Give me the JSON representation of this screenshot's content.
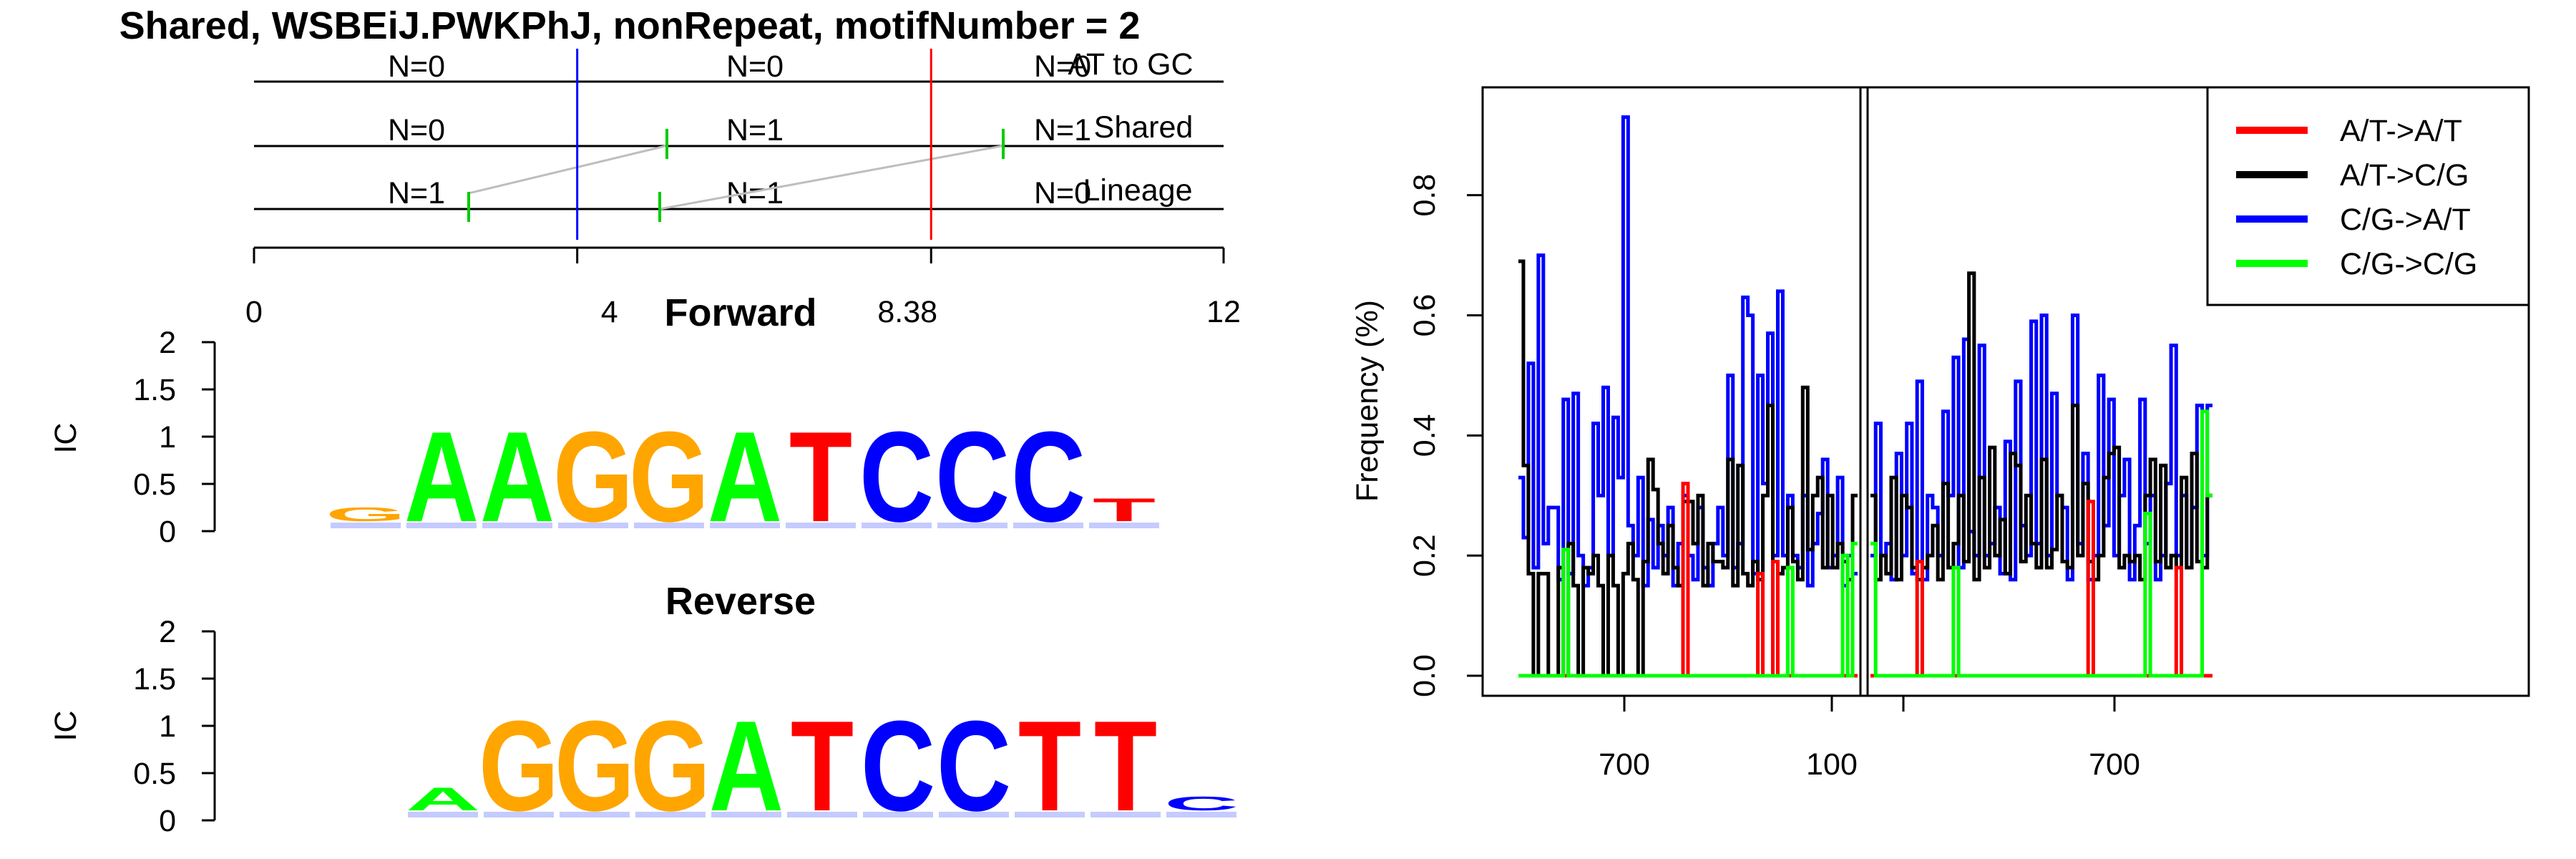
{
  "title": "Shared, WSBEiJ.PWKPhJ, nonRepeat, motifNumber = 2",
  "track": {
    "rows": [
      {
        "label": "AT to GC",
        "counts": [
          "N=0",
          "N=0",
          "N=0"
        ]
      },
      {
        "label": "Shared",
        "counts": [
          "N=0",
          "N=1",
          "N=1"
        ]
      },
      {
        "label": "Lineage",
        "counts": [
          "N=1",
          "N=1",
          "N=0"
        ]
      }
    ],
    "ticks": [
      "0",
      "4",
      "8.38",
      "12"
    ],
    "blue_marker_at": 4,
    "red_marker_at": 8.38,
    "axis_max": 12
  },
  "logos": [
    {
      "title": "Forward",
      "ylabel": "IC",
      "yticks": [
        "2",
        "1.5",
        "1",
        "0.5",
        "0"
      ],
      "letters": [
        "G",
        "A",
        "A",
        "G",
        "G",
        "A",
        "T",
        "C",
        "C",
        "C",
        "T"
      ],
      "heights": [
        0.15,
        0.98,
        0.98,
        0.98,
        0.98,
        0.98,
        0.98,
        0.98,
        0.98,
        0.98,
        0.25
      ]
    },
    {
      "title": "Reverse",
      "ylabel": "IC",
      "yticks": [
        "2",
        "1.5",
        "1",
        "0.5",
        "0"
      ],
      "letters": [
        "A",
        "G",
        "G",
        "G",
        "A",
        "T",
        "C",
        "C",
        "T",
        "T",
        "C"
      ],
      "heights": [
        0.25,
        0.98,
        0.98,
        0.98,
        0.98,
        0.98,
        0.98,
        0.98,
        0.98,
        0.98,
        0.15
      ]
    }
  ],
  "colors": {
    "A": "#00ff00",
    "C": "#0000ff",
    "G": "#ffa500",
    "T": "#ff0000",
    "blue_marker": "#0000ff",
    "red_marker": "#ff0000",
    "connector": "#bebebe",
    "tick_green": "#00cc00"
  },
  "chart_data": {
    "type": "line",
    "ylabel": "Frequency (%)",
    "yticks": [
      "0.0",
      "0.2",
      "0.4",
      "0.6",
      "0.8"
    ],
    "ylim": [
      0,
      0.97
    ],
    "xticks_left": [
      "700",
      "100"
    ],
    "xticks_right": [
      "700"
    ],
    "legend_position": "top-right",
    "series": [
      {
        "name": "A/T->A/T",
        "color": "#ff0000",
        "left": [
          0,
          0,
          0,
          0,
          0,
          0,
          0,
          0,
          0,
          0,
          0,
          0,
          0,
          0,
          0,
          0,
          0,
          0,
          0,
          0,
          0,
          0,
          0,
          0,
          0,
          0,
          0,
          0,
          0,
          0,
          0,
          0,
          0,
          0.32,
          0,
          0,
          0,
          0,
          0,
          0,
          0,
          0,
          0,
          0,
          0,
          0,
          0,
          0,
          0.17,
          0,
          0,
          0.19,
          0,
          0,
          0,
          0,
          0,
          0,
          0,
          0,
          0,
          0,
          0,
          0,
          0,
          0,
          0,
          0
        ],
        "right": [
          0,
          0,
          0,
          0,
          0,
          0,
          0,
          0,
          0,
          0.19,
          0,
          0,
          0,
          0,
          0,
          0,
          0,
          0,
          0,
          0,
          0,
          0,
          0,
          0,
          0,
          0,
          0,
          0,
          0,
          0,
          0,
          0,
          0,
          0,
          0,
          0,
          0,
          0,
          0,
          0,
          0,
          0,
          0.29,
          0,
          0,
          0,
          0,
          0,
          0,
          0,
          0,
          0,
          0,
          0,
          0,
          0,
          0,
          0,
          0,
          0.18,
          0,
          0,
          0,
          0,
          0,
          0
        ]
      },
      {
        "name": "A/T->C/G",
        "color": "#000000",
        "left": [
          0.69,
          0.35,
          0.17,
          0.0,
          0.17,
          0.17,
          0,
          0,
          0.18,
          0.0,
          0.22,
          0.15,
          0,
          0.18,
          0.17,
          0.2,
          0.15,
          0,
          0.2,
          0.15,
          0,
          0.17,
          0.22,
          0.16,
          0,
          0.19,
          0.36,
          0.31,
          0.22,
          0.17,
          0.25,
          0.18,
          0.15,
          0.29,
          0.29,
          0.22,
          0.3,
          0.15,
          0.22,
          0.19,
          0.19,
          0.18,
          0.36,
          0.15,
          0.35,
          0.17,
          0.15,
          0.19,
          0.16,
          0.3,
          0.45,
          0.19,
          0.17,
          0.18,
          0.28,
          0.19,
          0.16,
          0.48,
          0.21,
          0.3,
          0.33,
          0.18,
          0.3,
          0.18,
          0.22,
          0.19,
          0.16,
          0.3
        ],
        "right": [
          0.3,
          0.16,
          0.2,
          0.17,
          0.33,
          0.16,
          0.3,
          0.28,
          0.18,
          0.16,
          0.18,
          0.2,
          0.25,
          0.16,
          0.32,
          0.18,
          0.22,
          0.3,
          0.19,
          0.67,
          0.16,
          0.33,
          0.18,
          0.38,
          0.2,
          0.26,
          0.17,
          0.37,
          0.35,
          0.19,
          0.3,
          0.22,
          0.18,
          0.36,
          0.18,
          0.21,
          0.3,
          0.19,
          0.18,
          0.45,
          0.2,
          0.32,
          0.19,
          0.16,
          0.2,
          0.33,
          0.37,
          0.38,
          0.18,
          0.2,
          0.19,
          0.2,
          0.16,
          0.3,
          0.36,
          0.19,
          0.35,
          0.18,
          0.2,
          0.18,
          0.33,
          0.18,
          0.37,
          0.19,
          0.18,
          0.3
        ]
      },
      {
        "name": "C/G->A/T",
        "color": "#0000ff",
        "left": [
          0.33,
          0.23,
          0.52,
          0.18,
          0.7,
          0.22,
          0.28,
          0.28,
          0.16,
          0.46,
          0.17,
          0.47,
          0.2,
          0.15,
          0.18,
          0.42,
          0.3,
          0.48,
          0.2,
          0.43,
          0.33,
          0.93,
          0.25,
          0.2,
          0.33,
          0.15,
          0.26,
          0.18,
          0.25,
          0.2,
          0.28,
          0.15,
          0.22,
          0.3,
          0.2,
          0.16,
          0.28,
          0.18,
          0.15,
          0.22,
          0.28,
          0.2,
          0.5,
          0.18,
          0.22,
          0.63,
          0.6,
          0.17,
          0.5,
          0.32,
          0.57,
          0.2,
          0.64,
          0.2,
          0.3,
          0.2,
          0.18,
          0.3,
          0.15,
          0.22,
          0.27,
          0.36,
          0.18,
          0.2,
          0.33,
          0.15,
          0.2,
          0.17
        ],
        "right": [
          0.2,
          0.42,
          0.2,
          0.22,
          0.16,
          0.37,
          0.2,
          0.42,
          0.17,
          0.49,
          0.16,
          0.3,
          0.28,
          0.2,
          0.44,
          0.3,
          0.53,
          0.18,
          0.56,
          0.24,
          0.2,
          0.55,
          0.2,
          0.22,
          0.28,
          0.17,
          0.39,
          0.16,
          0.49,
          0.25,
          0.2,
          0.59,
          0.22,
          0.6,
          0.2,
          0.47,
          0.3,
          0.28,
          0.16,
          0.6,
          0.22,
          0.37,
          0.16,
          0.2,
          0.5,
          0.25,
          0.46,
          0.2,
          0.3,
          0.36,
          0.16,
          0.25,
          0.46,
          0.22,
          0.3,
          0.16,
          0.2,
          0.32,
          0.55,
          0.2,
          0.3,
          0.18,
          0.28,
          0.45,
          0.2,
          0.45
        ]
      },
      {
        "name": "C/G->C/G",
        "color": "#00ff00",
        "left": [
          0,
          0,
          0,
          0,
          0,
          0,
          0,
          0,
          0,
          0.21,
          0,
          0,
          0,
          0,
          0,
          0,
          0,
          0,
          0,
          0,
          0,
          0,
          0,
          0,
          0,
          0,
          0,
          0,
          0,
          0,
          0,
          0,
          0,
          0,
          0,
          0,
          0,
          0,
          0,
          0,
          0,
          0,
          0,
          0,
          0,
          0,
          0,
          0,
          0,
          0,
          0,
          0,
          0,
          0,
          0.18,
          0,
          0,
          0,
          0,
          0,
          0,
          0,
          0,
          0,
          0,
          0.2,
          0,
          0.22
        ],
        "right": [
          0.22,
          0,
          0,
          0,
          0,
          0,
          0,
          0,
          0,
          0,
          0,
          0,
          0,
          0,
          0,
          0,
          0.18,
          0,
          0,
          0,
          0,
          0,
          0,
          0,
          0,
          0,
          0,
          0,
          0,
          0,
          0,
          0,
          0,
          0,
          0,
          0,
          0,
          0,
          0,
          0,
          0,
          0,
          0,
          0,
          0,
          0,
          0,
          0,
          0,
          0,
          0,
          0,
          0,
          0.27,
          0,
          0,
          0,
          0,
          0,
          0,
          0,
          0,
          0,
          0,
          0.44,
          0.3
        ]
      }
    ]
  }
}
